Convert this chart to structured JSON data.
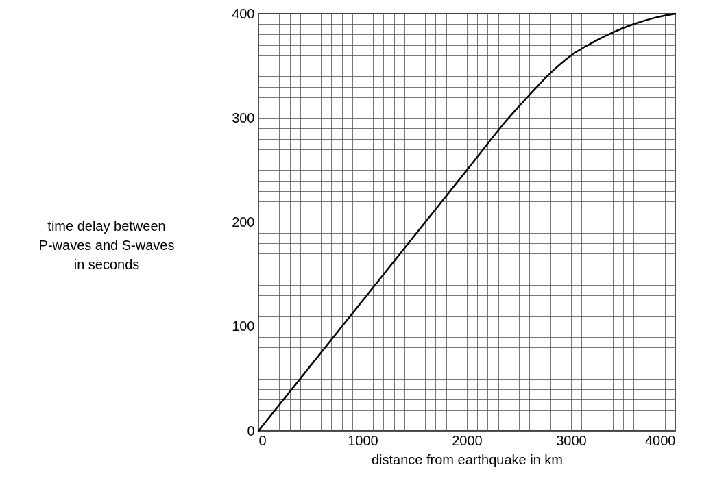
{
  "chart_data": {
    "type": "line",
    "xlabel": "distance from earthquake in km",
    "ylabel": "time delay between\nP-waves and S-waves\nin seconds",
    "x": [
      0,
      1000,
      2000,
      2400,
      2600,
      2800,
      3000,
      3200,
      3400,
      3600,
      3800,
      4000
    ],
    "series": [
      {
        "color": "#000000",
        "values": [
          0,
          125,
          250,
          300,
          322,
          343,
          360,
          372,
          382,
          390,
          396,
          400
        ]
      }
    ],
    "xlim": [
      0,
      4000
    ],
    "ylim": [
      0,
      400
    ],
    "xticks": [
      0,
      {
        "value": 100,
        "label": null
      },
      {
        "value": 200,
        "label": null
      },
      {
        "value": 300,
        "label": null
      },
      {
        "value": 400,
        "label": null
      },
      {
        "value": 500,
        "label": null
      },
      {
        "value": 600,
        "label": null
      },
      {
        "value": 700,
        "label": null
      },
      {
        "value": 800,
        "label": null
      },
      {
        "value": 900,
        "label": null
      },
      1000,
      {
        "value": 1100,
        "label": null
      },
      {
        "value": 1200,
        "label": null
      },
      {
        "value": 1300,
        "label": null
      },
      {
        "value": 1400,
        "label": null
      },
      {
        "value": 1500,
        "label": null
      },
      {
        "value": 1600,
        "label": null
      },
      {
        "value": 1700,
        "label": null
      },
      {
        "value": 1800,
        "label": null
      },
      {
        "value": 1900,
        "label": null
      },
      2000,
      {
        "value": 2100,
        "label": null
      },
      {
        "value": 2200,
        "label": null
      },
      {
        "value": 2300,
        "label": null
      },
      {
        "value": 2400,
        "label": null
      },
      {
        "value": 2500,
        "label": null
      },
      {
        "value": 2600,
        "label": null
      },
      {
        "value": 2700,
        "label": null
      },
      {
        "value": 2800,
        "label": null
      },
      {
        "value": 2900,
        "label": null
      },
      3000,
      {
        "value": 3100,
        "label": null
      },
      {
        "value": 3200,
        "label": null
      },
      {
        "value": 3300,
        "label": null
      },
      {
        "value": 3400,
        "label": null
      },
      {
        "value": 3500,
        "label": null
      },
      {
        "value": 3600,
        "label": null
      },
      {
        "value": 3700,
        "label": null
      },
      {
        "value": 3800,
        "label": null
      },
      {
        "value": 3900,
        "label": null
      },
      4000
    ],
    "yticks": [
      0,
      {
        "value": 10,
        "label": null
      },
      {
        "value": 20,
        "label": null
      },
      {
        "value": 30,
        "label": null
      },
      {
        "value": 40,
        "label": null
      },
      {
        "value": 50,
        "label": null
      },
      {
        "value": 60,
        "label": null
      },
      {
        "value": 70,
        "label": null
      },
      {
        "value": 80,
        "label": null
      },
      {
        "value": 90,
        "label": null
      },
      100,
      {
        "value": 110,
        "label": null
      },
      {
        "value": 120,
        "label": null
      },
      {
        "value": 130,
        "label": null
      },
      {
        "value": 140,
        "label": null
      },
      {
        "value": 150,
        "label": null
      },
      {
        "value": 160,
        "label": null
      },
      {
        "value": 170,
        "label": null
      },
      {
        "value": 180,
        "label": null
      },
      {
        "value": 190,
        "label": null
      },
      200,
      {
        "value": 210,
        "label": null
      },
      {
        "value": 220,
        "label": null
      },
      {
        "value": 230,
        "label": null
      },
      {
        "value": 240,
        "label": null
      },
      {
        "value": 250,
        "label": null
      },
      {
        "value": 260,
        "label": null
      },
      {
        "value": 270,
        "label": null
      },
      {
        "value": 280,
        "label": null
      },
      {
        "value": 290,
        "label": null
      },
      300,
      {
        "value": 310,
        "label": null
      },
      {
        "value": 320,
        "label": null
      },
      {
        "value": 330,
        "label": null
      },
      {
        "value": 340,
        "label": null
      },
      {
        "value": 350,
        "label": null
      },
      {
        "value": 360,
        "label": null
      },
      {
        "value": 370,
        "label": null
      },
      {
        "value": 380,
        "label": null
      },
      {
        "value": 390,
        "label": null
      },
      400
    ],
    "grid": true,
    "marker": "none",
    "line_style": "solid"
  }
}
